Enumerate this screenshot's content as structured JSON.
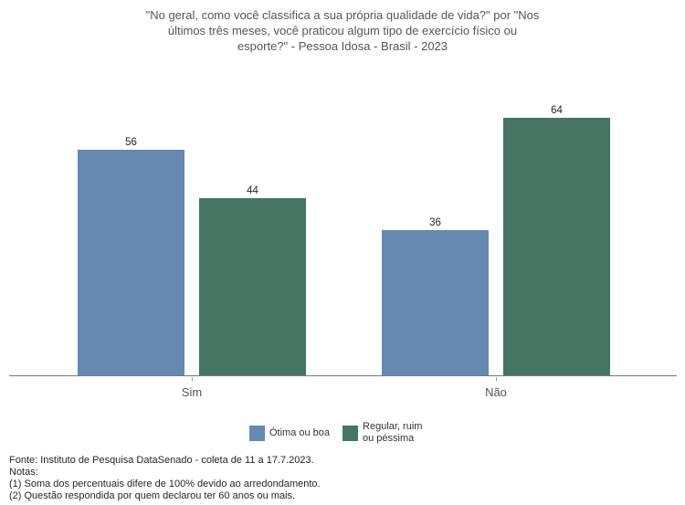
{
  "chart_data": {
    "type": "bar",
    "title": "\"No geral, como você classifica a sua própria qualidade de vida?\" por \"Nos últimos três meses, você praticou algum tipo de exercício físico ou esporte?\" - Pessoa Idosa - Brasil - 2023",
    "categories": [
      "Sim",
      "Não"
    ],
    "series": [
      {
        "name": "Ótima ou boa",
        "color": "#6589b0",
        "values": [
          56,
          36
        ]
      },
      {
        "name": "Regular, ruim ou péssima",
        "color": "#467564",
        "values": [
          44,
          64
        ]
      }
    ],
    "xlabel": "",
    "ylabel": "",
    "ylim": [
      0,
      70
    ],
    "grid": false,
    "value_labels": true,
    "legend_position": "bottom",
    "axis_color": "#787878",
    "label_color": "#555555"
  },
  "footer": {
    "source": "Fonte: Instituto de Pesquisa DataSenado - coleta de 11 a 17.7.2023.",
    "notes_label": "Notas:",
    "notes": [
      "(1) Soma dos percentuais difere de 100% devido ao arredondamento.",
      "(2) Questão respondida por quem declarou ter 60 anos ou mais."
    ]
  }
}
